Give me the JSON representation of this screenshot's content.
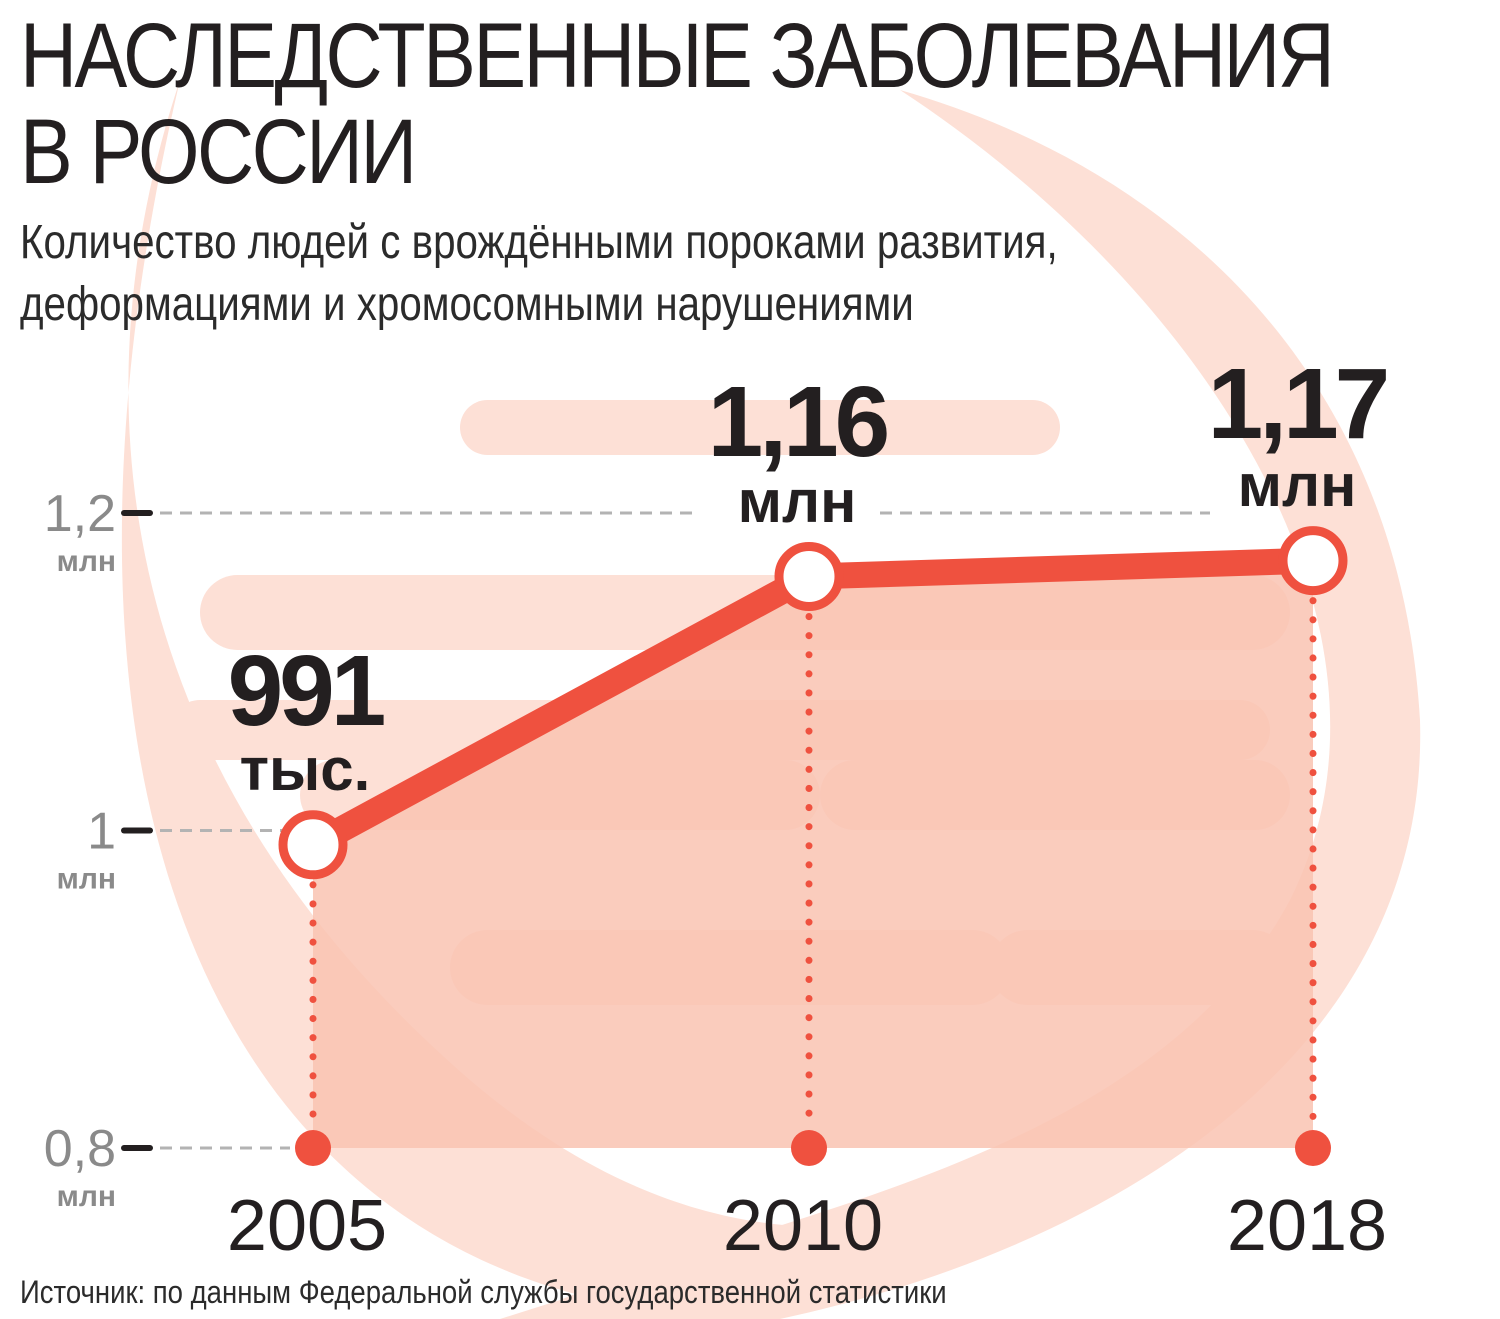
{
  "title_line1": "НАСЛЕДСТВЕННЫЕ ЗАБОЛЕВАНИЯ",
  "title_line2": "В РОССИИ",
  "subtitle_line1": "Количество людей с врождёнными пороками развития,",
  "subtitle_line2": "деформациями и хромосомными нарушениями",
  "source": "Источник: по данным Федеральной службы государственной статистики",
  "colors": {
    "line": "#ef513f",
    "fill": "#f9c3b1",
    "dna": "#fde0d6",
    "grid": "#b3b3b3",
    "tick": "#8a8a8a",
    "text": "#231f20"
  },
  "chart_data": {
    "type": "line",
    "title": "НАСЛЕДСТВЕННЫЕ ЗАБОЛЕВАНИЯ В РОССИИ",
    "subtitle": "Количество людей с врождёнными пороками развития, деформациями и хромосомными нарушениями",
    "xlabel": "",
    "ylabel": "",
    "categories": [
      "2005",
      "2010",
      "2018"
    ],
    "values": [
      0.991,
      1.16,
      1.17
    ],
    "value_labels": [
      {
        "value": "991",
        "unit": "тыс."
      },
      {
        "value": "1,16",
        "unit": "млн"
      },
      {
        "value": "1,17",
        "unit": "млн"
      }
    ],
    "ylim": [
      0.8,
      1.2
    ],
    "yticks": [
      {
        "value": 1.2,
        "label": "1,2",
        "unit": "млн"
      },
      {
        "value": 1.0,
        "label": "1",
        "unit": "млн"
      },
      {
        "value": 0.8,
        "label": "0,8",
        "unit": "млн"
      }
    ],
    "grid": true,
    "legend": "none"
  }
}
